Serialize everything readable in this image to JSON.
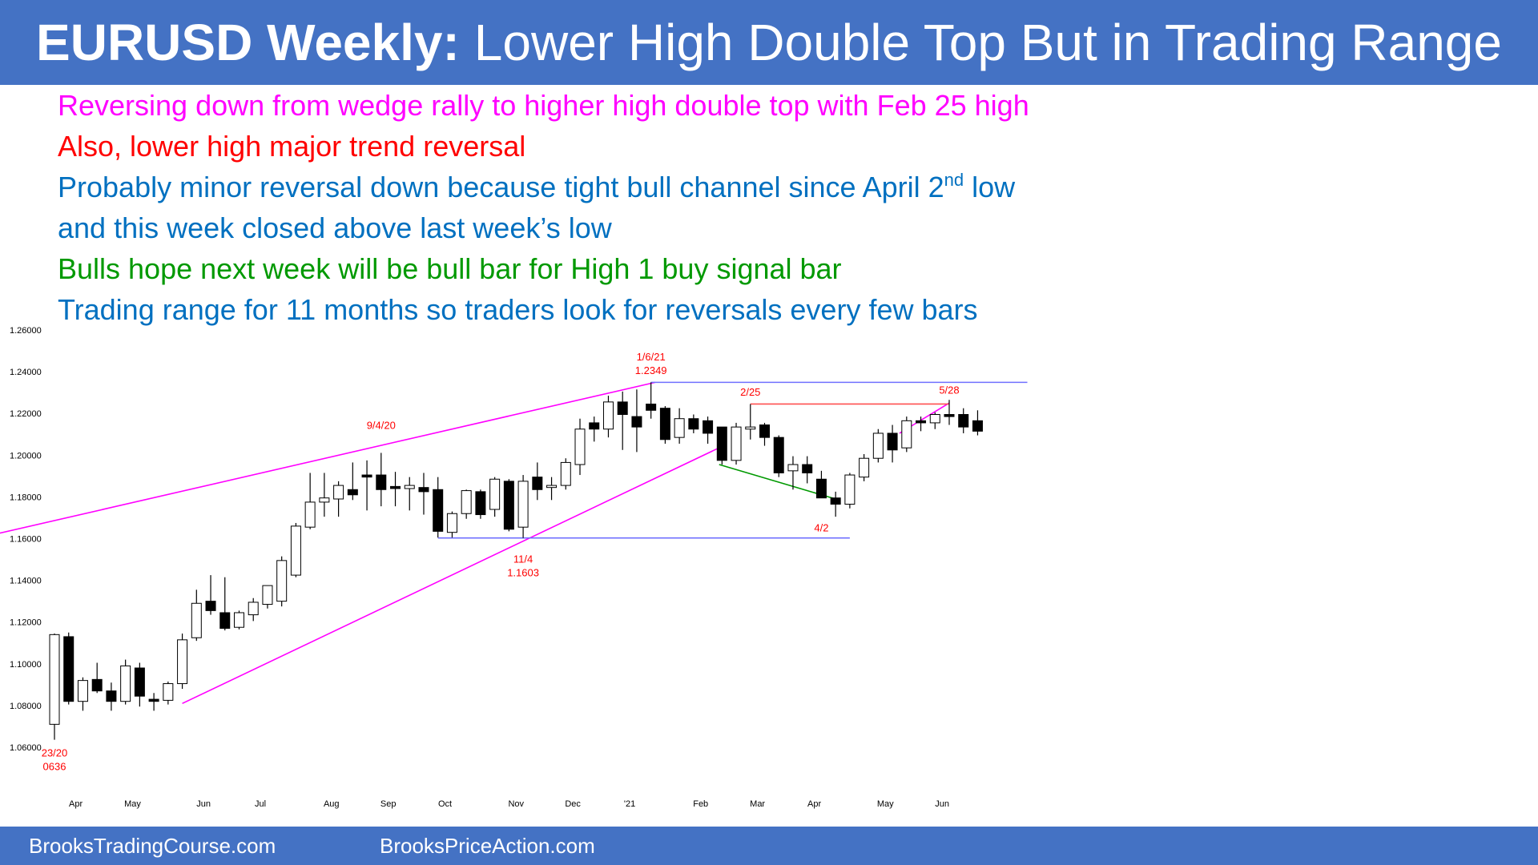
{
  "header": {
    "title_bold": "EURUSD Weekly:",
    "title_rest": "Lower High Double Top But in Trading Range"
  },
  "bullets": [
    {
      "text": "Reversing down from wedge rally to higher high double top with Feb 25 high",
      "color": "#ff00ff"
    },
    {
      "text": "Also, lower high major trend reversal",
      "color": "#ff0000"
    },
    {
      "text": "Probably minor reversal down because tight bull channel since April 2",
      "sup": "nd",
      "text_after": " low",
      "color": "#0070c0"
    },
    {
      "text": "and this week closed above last week’s low",
      "color": "#0070c0"
    },
    {
      "text": "Bulls hope next week will be bull bar for High 1 buy signal bar",
      "color": "#009900"
    },
    {
      "text": "Trading range for 11 months so traders look for reversals every few bars",
      "color": "#0070c0"
    }
  ],
  "footer": {
    "left": "BrooksTradingCourse.com",
    "right": "BrooksPriceAction.com"
  },
  "chart_data": {
    "type": "candlestick",
    "symbol": "EURUSD",
    "timeframe": "weekly",
    "ylim": [
      1.06,
      1.26
    ],
    "yticks": [
      "1.06000",
      "1.08000",
      "1.10000",
      "1.12000",
      "1.14000",
      "1.16000",
      "1.18000",
      "1.20000",
      "1.22000",
      "1.24000",
      "1.26000"
    ],
    "xticks": [
      {
        "label": "Apr",
        "bar": 1.5
      },
      {
        "label": "May",
        "bar": 5.5
      },
      {
        "label": "Jun",
        "bar": 10.5
      },
      {
        "label": "Jul",
        "bar": 14.5
      },
      {
        "label": "Aug",
        "bar": 19.5
      },
      {
        "label": "Sep",
        "bar": 23.5
      },
      {
        "label": "Oct",
        "bar": 27.5
      },
      {
        "label": "Nov",
        "bar": 32.5
      },
      {
        "label": "Dec",
        "bar": 36.5
      },
      {
        "label": "'21",
        "bar": 40.5
      },
      {
        "label": "Feb",
        "bar": 45.5
      },
      {
        "label": "Mar",
        "bar": 49.5
      },
      {
        "label": "Apr",
        "bar": 53.5
      },
      {
        "label": "May",
        "bar": 58.5
      },
      {
        "label": "Jun",
        "bar": 62.5
      }
    ],
    "bars": [
      [
        1.071,
        1.1145,
        1.0636,
        1.114
      ],
      [
        1.113,
        1.115,
        1.0805,
        1.082
      ],
      [
        1.082,
        1.0935,
        1.0775,
        1.092
      ],
      [
        1.0925,
        1.1005,
        1.086,
        1.087
      ],
      [
        1.087,
        1.091,
        1.0775,
        1.082
      ],
      [
        1.082,
        1.102,
        1.0805,
        1.099
      ],
      [
        1.098,
        1.1005,
        1.0795,
        1.0845
      ],
      [
        1.083,
        1.086,
        1.0775,
        1.082
      ],
      [
        1.0825,
        1.0915,
        1.0805,
        1.0905
      ],
      [
        1.0905,
        1.1145,
        1.088,
        1.1115
      ],
      [
        1.1125,
        1.1355,
        1.111,
        1.129
      ],
      [
        1.13,
        1.1425,
        1.1235,
        1.1255
      ],
      [
        1.1245,
        1.1415,
        1.116,
        1.117
      ],
      [
        1.1175,
        1.1255,
        1.1165,
        1.1245
      ],
      [
        1.1235,
        1.1315,
        1.1205,
        1.1295
      ],
      [
        1.1285,
        1.1375,
        1.1265,
        1.1375
      ],
      [
        1.13,
        1.1515,
        1.1275,
        1.1495
      ],
      [
        1.1425,
        1.1675,
        1.1415,
        1.166
      ],
      [
        1.1655,
        1.1915,
        1.1645,
        1.1775
      ],
      [
        1.1775,
        1.1915,
        1.1705,
        1.1795
      ],
      [
        1.179,
        1.1875,
        1.1705,
        1.1855
      ],
      [
        1.1835,
        1.1965,
        1.1785,
        1.181
      ],
      [
        1.1905,
        1.1975,
        1.1735,
        1.1895
      ],
      [
        1.1905,
        1.2011,
        1.1755,
        1.1835
      ],
      [
        1.185,
        1.192,
        1.1755,
        1.184
      ],
      [
        1.184,
        1.1895,
        1.1735,
        1.1855
      ],
      [
        1.1845,
        1.1915,
        1.1715,
        1.1825
      ],
      [
        1.1835,
        1.1895,
        1.1605,
        1.1635
      ],
      [
        1.163,
        1.173,
        1.1605,
        1.172
      ],
      [
        1.172,
        1.1835,
        1.1695,
        1.183
      ],
      [
        1.1825,
        1.1835,
        1.1695,
        1.1715
      ],
      [
        1.174,
        1.1895,
        1.1705,
        1.1885
      ],
      [
        1.1875,
        1.1885,
        1.1635,
        1.1645
      ],
      [
        1.1655,
        1.1905,
        1.1603,
        1.1875
      ],
      [
        1.1895,
        1.1965,
        1.1785,
        1.1835
      ],
      [
        1.1845,
        1.1895,
        1.1785,
        1.1855
      ],
      [
        1.1855,
        1.1985,
        1.1835,
        1.1965
      ],
      [
        1.1955,
        1.2175,
        1.1905,
        1.2125
      ],
      [
        1.2155,
        1.2185,
        1.2065,
        1.2125
      ],
      [
        1.2125,
        1.2285,
        1.2085,
        1.2255
      ],
      [
        1.2255,
        1.2305,
        1.2025,
        1.2195
      ],
      [
        1.2185,
        1.2315,
        1.2015,
        1.2135
      ],
      [
        1.2245,
        1.2349,
        1.2175,
        1.2215
      ],
      [
        1.2225,
        1.2235,
        1.2055,
        1.2075
      ],
      [
        1.2085,
        1.2225,
        1.2055,
        1.2175
      ],
      [
        1.2175,
        1.2195,
        1.2105,
        1.2125
      ],
      [
        1.2165,
        1.2185,
        1.2055,
        1.2105
      ],
      [
        1.2135,
        1.2135,
        1.1955,
        1.1975
      ],
      [
        1.1975,
        1.2155,
        1.1955,
        1.2135
      ],
      [
        1.2125,
        1.2245,
        1.2075,
        1.2135
      ],
      [
        1.2145,
        1.2155,
        1.2045,
        1.2085
      ],
      [
        1.2085,
        1.2095,
        1.1895,
        1.1915
      ],
      [
        1.1925,
        1.1995,
        1.1835,
        1.1955
      ],
      [
        1.1955,
        1.1995,
        1.1865,
        1.1915
      ],
      [
        1.1885,
        1.1925,
        1.1835,
        1.1795
      ],
      [
        1.1795,
        1.1825,
        1.1705,
        1.1765
      ],
      [
        1.1765,
        1.1915,
        1.1745,
        1.1905
      ],
      [
        1.1895,
        1.2005,
        1.1875,
        1.1985
      ],
      [
        1.1985,
        1.2125,
        1.1965,
        1.2105
      ],
      [
        1.2105,
        1.2145,
        1.1965,
        1.2025
      ],
      [
        1.2035,
        1.2185,
        1.2015,
        1.2165
      ],
      [
        1.2165,
        1.2185,
        1.2115,
        1.2155
      ],
      [
        1.2155,
        1.2205,
        1.2125,
        1.2195
      ],
      [
        1.2195,
        1.2265,
        1.2145,
        1.2185
      ],
      [
        1.2195,
        1.2225,
        1.2105,
        1.2135
      ],
      [
        1.2165,
        1.2215,
        1.2095,
        1.2115
      ]
    ],
    "lines": [
      {
        "from": [
          -10,
          1.153
        ],
        "to": [
          42.3,
          1.2349
        ],
        "color": "#ff00ff"
      },
      {
        "from": [
          9,
          1.081
        ],
        "to": [
          46.7,
          1.2032
        ],
        "color": "#ff00ff"
      },
      {
        "from": [
          59.5,
          1.2105
        ],
        "to": [
          63,
          1.225
        ],
        "color": "#ff00ff"
      },
      {
        "from": [
          46.8,
          1.1955
        ],
        "to": [
          55,
          1.179
        ],
        "color": "#009900"
      },
      {
        "from": [
          42,
          1.2349
        ],
        "to": [
          68.5,
          1.2349
        ],
        "color": "#7070ff"
      },
      {
        "from": [
          49,
          1.2245
        ],
        "to": [
          63,
          1.2245
        ],
        "color": "#ff5050"
      },
      {
        "from": [
          27,
          1.1603
        ],
        "to": [
          56,
          1.1603
        ],
        "color": "#7070ff"
      }
    ],
    "annotations": [
      {
        "lines": [
          "1/6/21",
          "1.2349"
        ],
        "bar": 42,
        "y": 1.2455,
        "color": "#ff0000"
      },
      {
        "lines": [
          "9/4/20"
        ],
        "bar": 23,
        "y": 1.2125,
        "color": "#ff0000"
      },
      {
        "lines": [
          "2/25"
        ],
        "bar": 49,
        "y": 1.2285,
        "color": "#ff0000"
      },
      {
        "lines": [
          "5/28"
        ],
        "bar": 63,
        "y": 1.2295,
        "color": "#ff0000"
      },
      {
        "lines": [
          "4/2"
        ],
        "bar": 54,
        "y": 1.1635,
        "color": "#ff0000"
      },
      {
        "lines": [
          "11/4",
          "1.1603"
        ],
        "bar": 33,
        "y": 1.1485,
        "color": "#ff0000"
      },
      {
        "lines": [
          "23/20",
          "0636"
        ],
        "bar": 0,
        "y": 1.0555,
        "color": "#ff0000"
      }
    ]
  }
}
